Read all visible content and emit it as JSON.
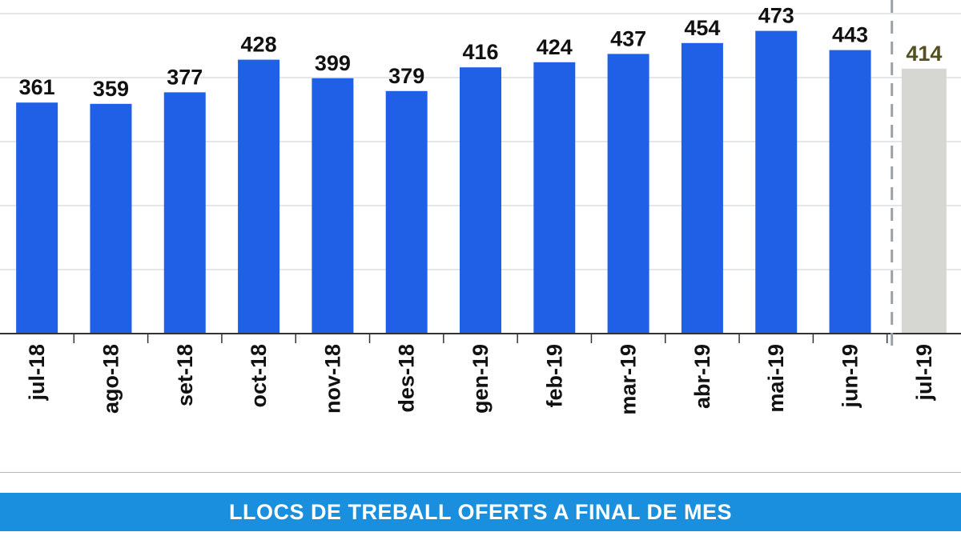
{
  "chart_data": {
    "type": "bar",
    "categories": [
      "jul-18",
      "ago-18",
      "set-18",
      "oct-18",
      "nov-18",
      "des-18",
      "gen-19",
      "feb-19",
      "mar-19",
      "abr-19",
      "mai-19",
      "jun-19",
      "jul-19"
    ],
    "values": [
      361,
      359,
      377,
      428,
      399,
      379,
      416,
      424,
      437,
      454,
      473,
      443,
      414
    ],
    "highlight_index": 12,
    "ylim": [
      0,
      500
    ],
    "grid": true,
    "title": "LLOCS DE TREBALL OFERTS A FINAL DE MES",
    "xlabel": "",
    "ylabel": ""
  },
  "colors": {
    "bar": "#2060e6",
    "highlight_bar": "#d6d7d2",
    "value_label": "#111111",
    "highlight_value_label": "#55501f",
    "grid": "#c9ccd0",
    "separator": "#9aa0a6",
    "banner": "#1a8fdd"
  }
}
